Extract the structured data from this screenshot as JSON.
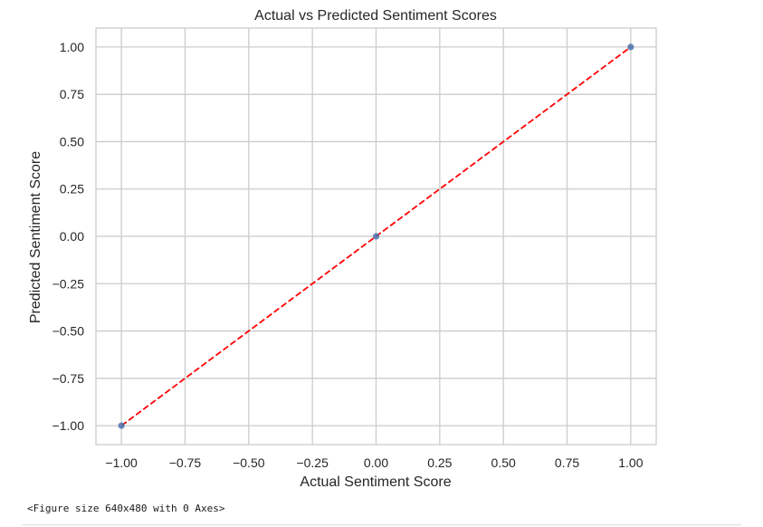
{
  "figure_note": "<Figure size 640x480 with 0 Axes>",
  "chart_data": {
    "type": "scatter",
    "title": "Actual vs Predicted Sentiment Scores",
    "xlabel": "Actual Sentiment Score",
    "ylabel": "Predicted Sentiment Score",
    "xlim": [
      -1.1,
      1.1
    ],
    "ylim": [
      -1.1,
      1.1
    ],
    "xticks": [
      -1.0,
      -0.75,
      -0.5,
      -0.25,
      0.0,
      0.25,
      0.5,
      0.75,
      1.0
    ],
    "xtick_labels": [
      "−1.00",
      "−0.75",
      "−0.50",
      "−0.25",
      "0.00",
      "0.25",
      "0.50",
      "0.75",
      "1.00"
    ],
    "yticks": [
      -1.0,
      -0.75,
      -0.5,
      -0.25,
      0.0,
      0.25,
      0.5,
      0.75,
      1.0
    ],
    "ytick_labels": [
      "−1.00",
      "−0.75",
      "−0.50",
      "−0.25",
      "0.00",
      "0.25",
      "0.50",
      "0.75",
      "1.00"
    ],
    "grid": true,
    "points": [
      {
        "x": -1.0,
        "y": -1.0
      },
      {
        "x": 0.0,
        "y": 0.0
      },
      {
        "x": 1.0,
        "y": 1.0
      }
    ],
    "reference_line": {
      "x": [
        -1.0,
        1.0
      ],
      "y": [
        -1.0,
        1.0
      ],
      "style": "dashed"
    },
    "colors": {
      "points": "#4c72b0",
      "reference_line": "#ff0000",
      "grid": "#cccccc",
      "text": "#262626"
    }
  }
}
